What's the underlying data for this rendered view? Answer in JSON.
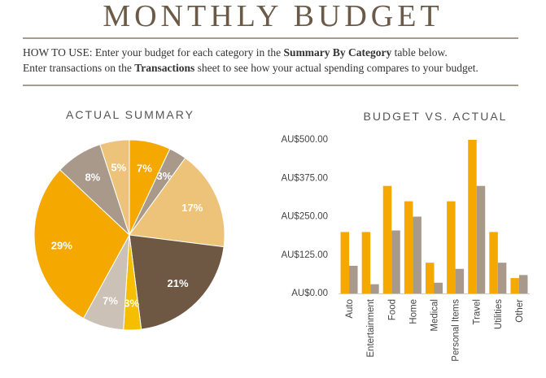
{
  "header": {
    "title": "MONTHLY BUDGET",
    "howto_prefix": "HOW TO USE: Enter your budget for each category in the ",
    "howto_bold1": "Summary By Category",
    "howto_mid": " table below.",
    "howto_line2_prefix": "Enter transactions on the ",
    "howto_bold2": "Transactions",
    "howto_suffix": " sheet to see how your actual spending compares to your budget."
  },
  "colors": {
    "title": "#6b5a48",
    "rule": "#a89b8c",
    "budget": "#f5a800",
    "actual": "#a8998a"
  },
  "chart_data": [
    {
      "type": "pie",
      "title": "ACTUAL SUMMARY",
      "slices": [
        {
          "label": "7%",
          "value": 7,
          "color": "#f5a800"
        },
        {
          "label": "3%",
          "value": 3,
          "color": "#a8998a"
        },
        {
          "label": "17%",
          "value": 17,
          "color": "#edc37a"
        },
        {
          "label": "21%",
          "value": 21,
          "color": "#6e5843"
        },
        {
          "label": "3%",
          "value": 3,
          "color": "#f5bf00"
        },
        {
          "label": "7%",
          "value": 7,
          "color": "#cbc1b6"
        },
        {
          "label": "29%",
          "value": 29,
          "color": "#f5a800"
        },
        {
          "label": "8%",
          "value": 8,
          "color": "#a8998a"
        },
        {
          "label": "5%",
          "value": 5,
          "color": "#edc37a"
        }
      ]
    },
    {
      "type": "bar",
      "title": "BUDGET VS. ACTUAL",
      "categories": [
        "Auto",
        "Entertainment",
        "Food",
        "Home",
        "Medical",
        "Personal Items",
        "Travel",
        "Utilities",
        "Other"
      ],
      "series": [
        {
          "values": [
            200,
            200,
            350,
            300,
            100,
            300,
            500,
            200,
            50
          ],
          "color": "#f5a800"
        },
        {
          "values": [
            90,
            30,
            205,
            250,
            35,
            80,
            350,
            100,
            60
          ],
          "color": "#a8998a"
        }
      ],
      "yticks": [
        "AU$500.00",
        "AU$375.00",
        "AU$250.00",
        "AU$125.00",
        "AU$0.00"
      ],
      "ylim": [
        0,
        500
      ],
      "grid": false
    }
  ]
}
